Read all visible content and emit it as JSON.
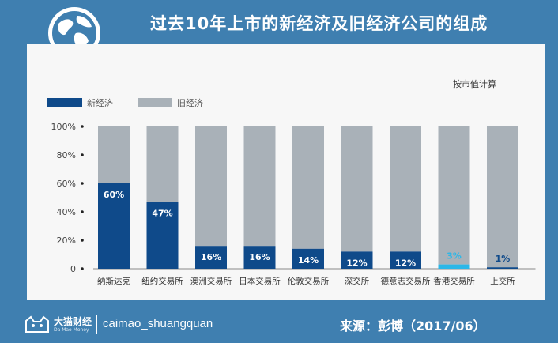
{
  "page": {
    "title": "过去10年上市的新经济及旧经济公司的组成",
    "brand_name": "大猫财经",
    "brand_sub": "Da Mao Money",
    "handle": "caimao_shuangquan",
    "source": "来源：彭博（2017/06）"
  },
  "chart_data": {
    "type": "bar",
    "stacked": true,
    "note": "按市值计算",
    "categories": [
      "纳斯达克",
      "纽约交易所",
      "澳洲交易所",
      "日本交易所",
      "伦敦交易所",
      "深交所",
      "德意志交易所",
      "香港交易所",
      "上交所"
    ],
    "series": [
      {
        "name": "新经济",
        "values": [
          60,
          47,
          16,
          16,
          14,
          12,
          12,
          3,
          1
        ],
        "color": "#0f4a8a"
      },
      {
        "name": "旧经济",
        "values": [
          40,
          53,
          84,
          84,
          86,
          88,
          88,
          97,
          99
        ],
        "color": "#a9b1b8"
      }
    ],
    "data_labels": [
      "60%",
      "47%",
      "16%",
      "16%",
      "14%",
      "12%",
      "12%",
      "3%",
      "1%"
    ],
    "highlight": {
      "category": "香港交易所",
      "color": "#2bb7e8"
    },
    "y_ticks": [
      "0",
      "20%",
      "40%",
      "60%",
      "80%",
      "100%"
    ],
    "ylim": [
      0,
      100
    ],
    "legend_position": "top-left"
  }
}
